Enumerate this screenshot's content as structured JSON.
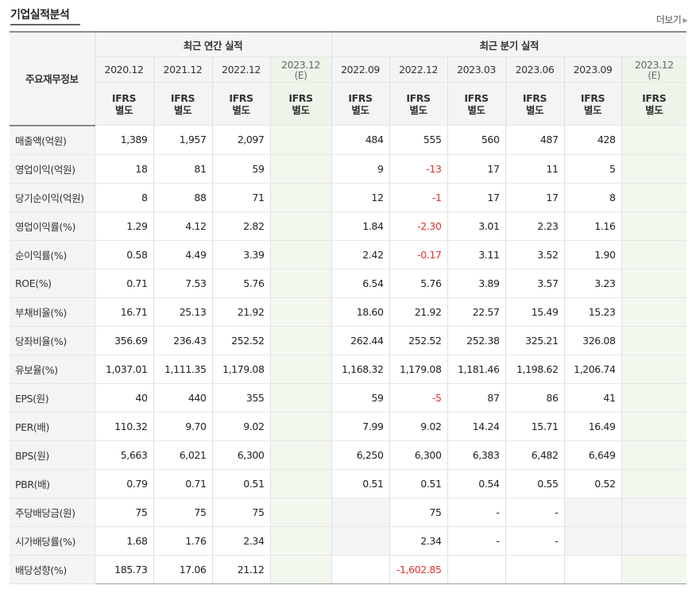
{
  "header": {
    "title": "기업실적분석",
    "more_label": "더보기"
  },
  "table": {
    "row_head_label": "주요재무정보",
    "group_annual": "최근 연간 실적",
    "group_quarter": "최근 분기 실적",
    "periods": [
      {
        "label": "2020.12",
        "est": false
      },
      {
        "label": "2021.12",
        "est": false
      },
      {
        "label": "2022.12",
        "est": false
      },
      {
        "label": "2023.12",
        "est": true,
        "suffix": "(E)"
      },
      {
        "label": "2022.09",
        "est": false
      },
      {
        "label": "2022.12",
        "est": false
      },
      {
        "label": "2023.03",
        "est": false
      },
      {
        "label": "2023.06",
        "est": false
      },
      {
        "label": "2023.09",
        "est": false
      },
      {
        "label": "2023.12",
        "est": true,
        "suffix": "(E)"
      }
    ],
    "ifrs_line1": "IFRS",
    "ifrs_line2": "별도",
    "rows": [
      {
        "label": "매출액(억원)",
        "sep": true,
        "values": [
          "1,389",
          "1,957",
          "2,097",
          "",
          "484",
          "555",
          "560",
          "487",
          "428",
          ""
        ]
      },
      {
        "label": "영업이익(억원)",
        "sep": false,
        "values": [
          "18",
          "81",
          "59",
          "",
          "9",
          "-13",
          "17",
          "11",
          "5",
          ""
        ]
      },
      {
        "label": "당기순이익(억원)",
        "sep": false,
        "values": [
          "8",
          "88",
          "71",
          "",
          "12",
          "-1",
          "17",
          "17",
          "8",
          ""
        ]
      },
      {
        "label": "영업이익률(%)",
        "sep": true,
        "values": [
          "1.29",
          "4.12",
          "2.82",
          "",
          "1.84",
          "-2.30",
          "3.01",
          "2.23",
          "1.16",
          ""
        ]
      },
      {
        "label": "순이익률(%)",
        "sep": false,
        "values": [
          "0.58",
          "4.49",
          "3.39",
          "",
          "2.42",
          "-0.17",
          "3.11",
          "3.52",
          "1.90",
          ""
        ]
      },
      {
        "label": "ROE(%)",
        "sep": false,
        "values": [
          "0.71",
          "7.53",
          "5.76",
          "",
          "6.54",
          "5.76",
          "3.89",
          "3.57",
          "3.23",
          ""
        ]
      },
      {
        "label": "부채비율(%)",
        "sep": true,
        "values": [
          "16.71",
          "25.13",
          "21.92",
          "",
          "18.60",
          "21.92",
          "22.57",
          "15.49",
          "15.23",
          ""
        ]
      },
      {
        "label": "당좌비율(%)",
        "sep": false,
        "values": [
          "356.69",
          "236.43",
          "252.52",
          "",
          "262.44",
          "252.52",
          "252.38",
          "325.21",
          "326.08",
          ""
        ]
      },
      {
        "label": "유보율(%)",
        "sep": false,
        "values": [
          "1,037.01",
          "1,111.35",
          "1,179.08",
          "",
          "1,168.32",
          "1,179.08",
          "1,181.46",
          "1,198.62",
          "1,206.74",
          ""
        ]
      },
      {
        "label": "EPS(원)",
        "sep": true,
        "values": [
          "40",
          "440",
          "355",
          "",
          "59",
          "-5",
          "87",
          "86",
          "41",
          ""
        ]
      },
      {
        "label": "PER(배)",
        "sep": false,
        "values": [
          "110.32",
          "9.70",
          "9.02",
          "",
          "7.99",
          "9.02",
          "14.24",
          "15.71",
          "16.49",
          ""
        ]
      },
      {
        "label": "BPS(원)",
        "sep": false,
        "values": [
          "5,663",
          "6,021",
          "6,300",
          "",
          "6,250",
          "6,300",
          "6,383",
          "6,482",
          "6,649",
          ""
        ]
      },
      {
        "label": "PBR(배)",
        "sep": false,
        "values": [
          "0.79",
          "0.71",
          "0.51",
          "",
          "0.51",
          "0.51",
          "0.54",
          "0.55",
          "0.52",
          ""
        ]
      },
      {
        "label": "주당배당금(원)",
        "sep": true,
        "values": [
          "75",
          "75",
          "75",
          "",
          "",
          "75",
          "-",
          "-",
          "",
          ""
        ],
        "gray": [
          4,
          8,
          9
        ]
      },
      {
        "label": "시가배당률(%)",
        "sep": false,
        "values": [
          "1.68",
          "1.76",
          "2.34",
          "",
          "",
          "2.34",
          "-",
          "-",
          "",
          ""
        ],
        "gray": [
          4,
          8,
          9
        ]
      },
      {
        "label": "배당성향(%)",
        "sep": false,
        "values": [
          "185.73",
          "17.06",
          "21.12",
          "",
          "",
          "-1,602.85",
          "",
          "",
          "",
          ""
        ],
        "gray": []
      }
    ]
  }
}
